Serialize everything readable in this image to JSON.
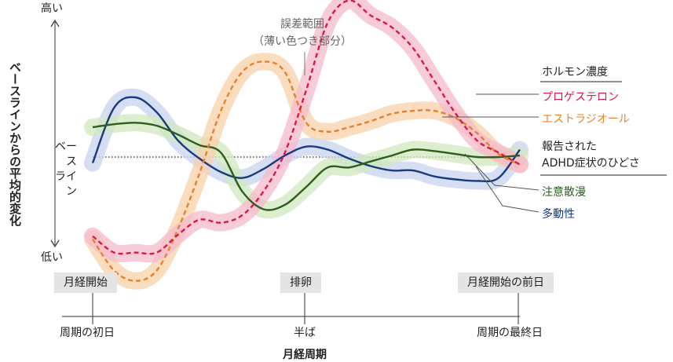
{
  "yaxis": {
    "label": "ベースラインからの平均的変化",
    "high": "高い",
    "low": "低い",
    "baseline_line1": "ベース",
    "baseline_line2": "ライン"
  },
  "annotation": {
    "line1": "誤差範囲",
    "line2": "（薄い色つき部分）"
  },
  "legend": {
    "hormone_header": "ホルモン濃度",
    "progesterone": "プロゲステロン",
    "estradiol": "エストラジオール",
    "symptom_header_line1": "報告された",
    "symptom_header_line2": "ADHD症状のひどさ",
    "inattention": "注意散漫",
    "hyperactivity": "多動性"
  },
  "phases": {
    "menstruation_start": "月経開始",
    "ovulation": "排卵",
    "pre_menstruation": "月経開始の前日"
  },
  "xaxis": {
    "start": "周期の初日",
    "mid": "半ば",
    "end": "周期の最終日",
    "title": "月経周期"
  },
  "chart_data": {
    "type": "line",
    "title": "",
    "xlabel": "月経周期",
    "ylabel": "ベースラインからの平均的変化",
    "xlim": [
      0,
      1
    ],
    "ylim": [
      -1,
      1
    ],
    "baseline": 0,
    "grid": false,
    "legend_position": "right",
    "x": [
      0,
      0.05,
      0.1,
      0.15,
      0.2,
      0.25,
      0.3,
      0.35,
      0.4,
      0.45,
      0.5,
      0.55,
      0.6,
      0.65,
      0.7,
      0.75,
      0.8,
      0.85,
      0.9,
      0.95,
      1.0
    ],
    "series": [
      {
        "name": "プロゲステロン",
        "color": "#d9194a",
        "band_color": "#f6b9cc",
        "style": "dashed",
        "values": [
          -0.53,
          -0.64,
          -0.64,
          -0.64,
          -0.52,
          -0.42,
          -0.44,
          -0.39,
          -0.23,
          0.03,
          0.45,
          0.9,
          1.05,
          0.95,
          0.87,
          0.73,
          0.51,
          0.29,
          0.11,
          0.03,
          -0.05
        ],
        "band": 0.04
      },
      {
        "name": "エストラジオール",
        "color": "#e8822a",
        "band_color": "#f8d0a8",
        "style": "dashed",
        "values": [
          -0.55,
          -0.76,
          -0.83,
          -0.76,
          -0.48,
          -0.11,
          0.31,
          0.57,
          0.64,
          0.57,
          0.23,
          0.17,
          0.2,
          0.24,
          0.29,
          0.31,
          0.31,
          0.26,
          0.16,
          0.02,
          -0.05
        ],
        "band": 0.04
      },
      {
        "name": "注意散漫",
        "color": "#2e5e1c",
        "band_color": "#cfe8bd",
        "style": "solid",
        "values": [
          0.2,
          0.22,
          0.23,
          0.21,
          0.15,
          0.08,
          0.03,
          -0.23,
          -0.35,
          -0.32,
          -0.2,
          -0.07,
          -0.07,
          -0.03,
          0.01,
          0.05,
          0.04,
          0.02,
          0.0,
          0.0,
          0.01
        ],
        "band": 0.05
      },
      {
        "name": "多動性",
        "color": "#173a80",
        "band_color": "#c7d3ee",
        "style": "solid",
        "values": [
          -0.04,
          0.33,
          0.4,
          0.3,
          0.11,
          -0.01,
          -0.1,
          -0.14,
          -0.08,
          0.01,
          0.07,
          0.05,
          -0.01,
          -0.06,
          -0.09,
          -0.09,
          -0.13,
          -0.15,
          -0.16,
          -0.14,
          0.05
        ],
        "band": 0.05
      }
    ]
  }
}
